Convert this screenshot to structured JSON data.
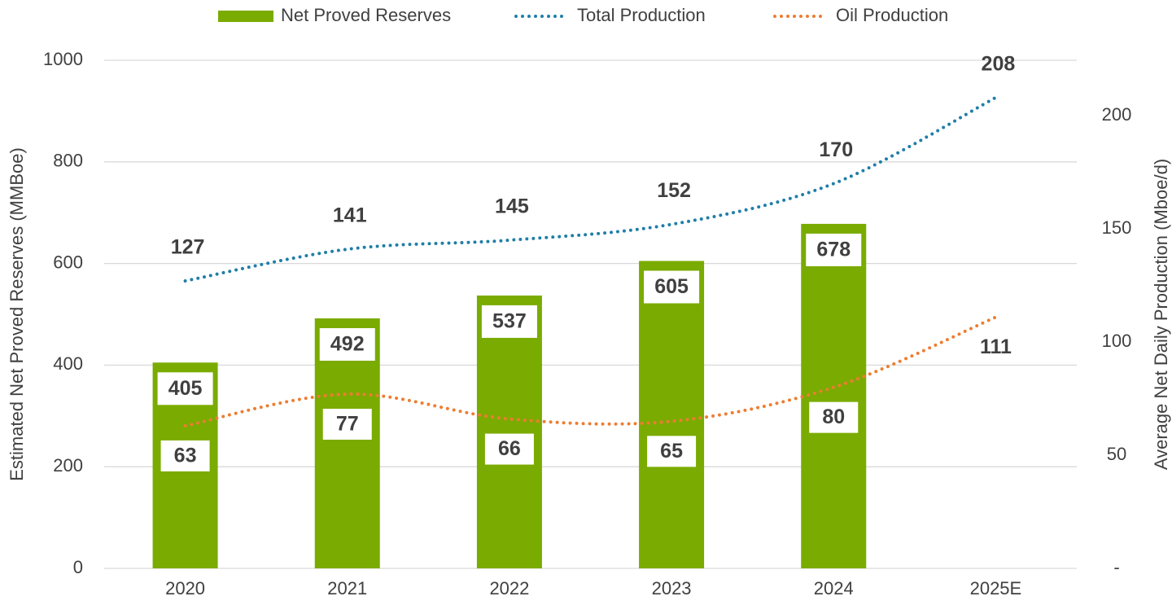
{
  "chart_data": {
    "type": "bar",
    "categories": [
      "2020",
      "2021",
      "2022",
      "2023",
      "2024",
      "2025E"
    ],
    "series": [
      {
        "name": "Net Proved Reserves",
        "type": "bar",
        "color": "#7aab00",
        "values": [
          405,
          492,
          537,
          605,
          678,
          null
        ]
      },
      {
        "name": "Total Production",
        "type": "line",
        "axis": "y2",
        "color": "#1f7ea8",
        "values": [
          127,
          141,
          145,
          152,
          170,
          208
        ]
      },
      {
        "name": "Oil Production",
        "type": "line",
        "axis": "y2",
        "color": "#ed7d31",
        "values": [
          63,
          77,
          66,
          65,
          80,
          111
        ]
      }
    ],
    "ylabel": "Estimated Net Proved Reserves (MMBoe)",
    "y2label": "Average Net Daily Production (Mboe/d)",
    "ylim": [
      0,
      1000
    ],
    "yticks": [
      0,
      200,
      400,
      600,
      800,
      1000
    ],
    "y2lim": [
      0,
      224.5
    ],
    "y2ticks": [
      {
        "value": 0,
        "label": "-"
      },
      50,
      100,
      150,
      200
    ],
    "grid": true,
    "legend": "top"
  }
}
